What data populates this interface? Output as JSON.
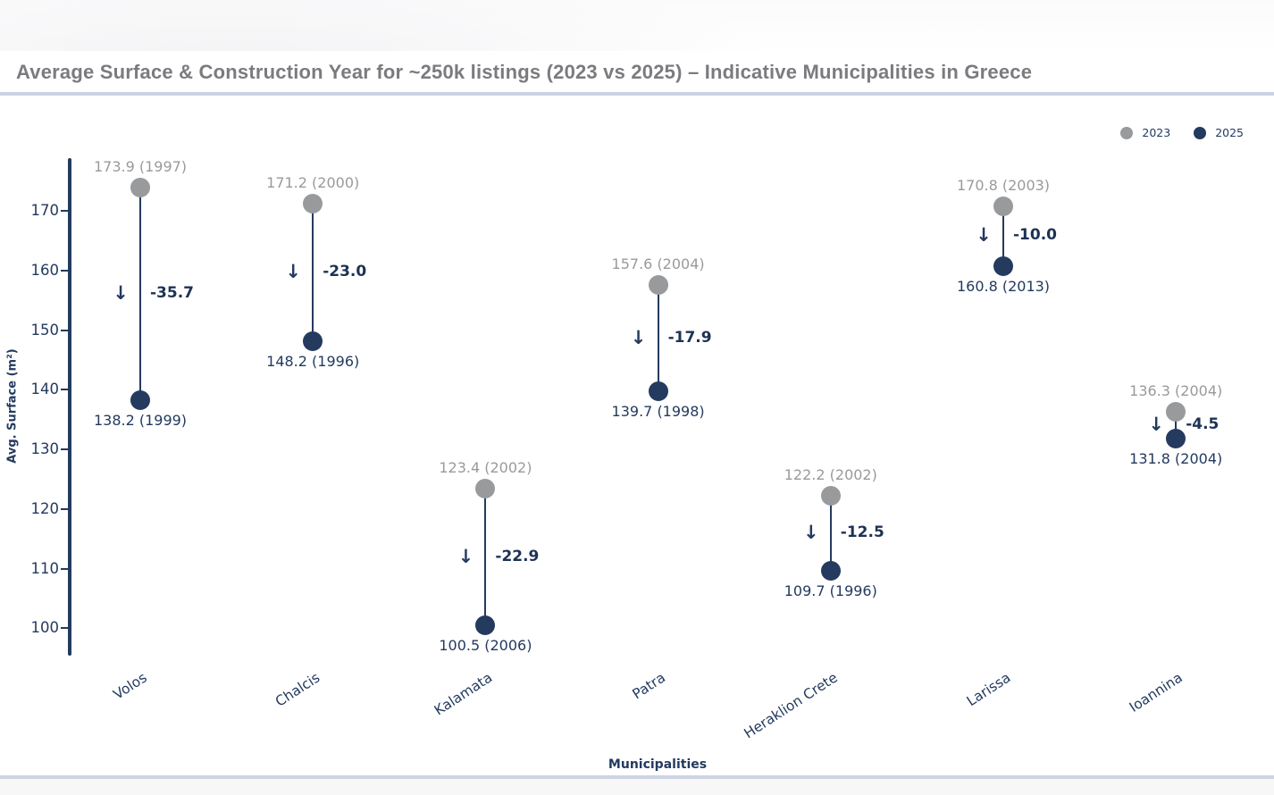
{
  "page": {
    "title": "Average Surface & Construction Year for ~250k listings (2023 vs 2025) – Indicative Municipalities in Greece"
  },
  "colors": {
    "navy": "#243a5e",
    "gray": "#999a9c",
    "title_gray": "#7b7b7f",
    "divider": "#ccd3e2"
  },
  "chart_data": {
    "type": "dumbbell",
    "title": "Average Surface & Construction Year for ~250k listings (2023 vs 2025) – Indicative Municipalities in Greece",
    "xlabel": "Municipalities",
    "ylabel": "Avg. Surface (m²)",
    "ylim": [
      95,
      179
    ],
    "yticks": [
      100,
      110,
      120,
      130,
      140,
      150,
      160,
      170
    ],
    "grid": false,
    "legend_position": "top-right",
    "categories": [
      "Volos",
      "Chalcis",
      "Kalamata",
      "Patra",
      "Heraklion Crete",
      "Larissa",
      "Ioannina"
    ],
    "series": [
      {
        "name": "2023",
        "color": "#999a9c",
        "values": [
          173.9,
          171.2,
          123.4,
          157.6,
          122.2,
          170.8,
          136.3
        ],
        "years": [
          1997,
          2000,
          2002,
          2004,
          2002,
          2003,
          2004
        ],
        "point_labels": [
          "173.9 (1997)",
          "171.2 (2000)",
          "123.4 (2002)",
          "157.6 (2004)",
          "122.2 (2002)",
          "170.8 (2003)",
          "136.3 (2004)"
        ]
      },
      {
        "name": "2025",
        "color": "#243a5e",
        "values": [
          138.2,
          148.2,
          100.5,
          139.7,
          109.7,
          160.8,
          131.8
        ],
        "years": [
          1999,
          1996,
          2006,
          1998,
          1996,
          2013,
          2004
        ],
        "point_labels": [
          "138.2 (1999)",
          "148.2 (1996)",
          "100.5 (2006)",
          "139.7 (1998)",
          "109.7 (1996)",
          "160.8 (2013)",
          "131.8 (2004)"
        ]
      }
    ],
    "diffs": [
      -35.7,
      -23.0,
      -22.9,
      -17.9,
      -12.5,
      -10.0,
      -4.5
    ],
    "diff_labels": [
      "-35.7",
      "-23.0",
      "-22.9",
      "-17.9",
      "-12.5",
      "-10.0",
      "-4.5"
    ],
    "arrow_icon": "↓"
  }
}
